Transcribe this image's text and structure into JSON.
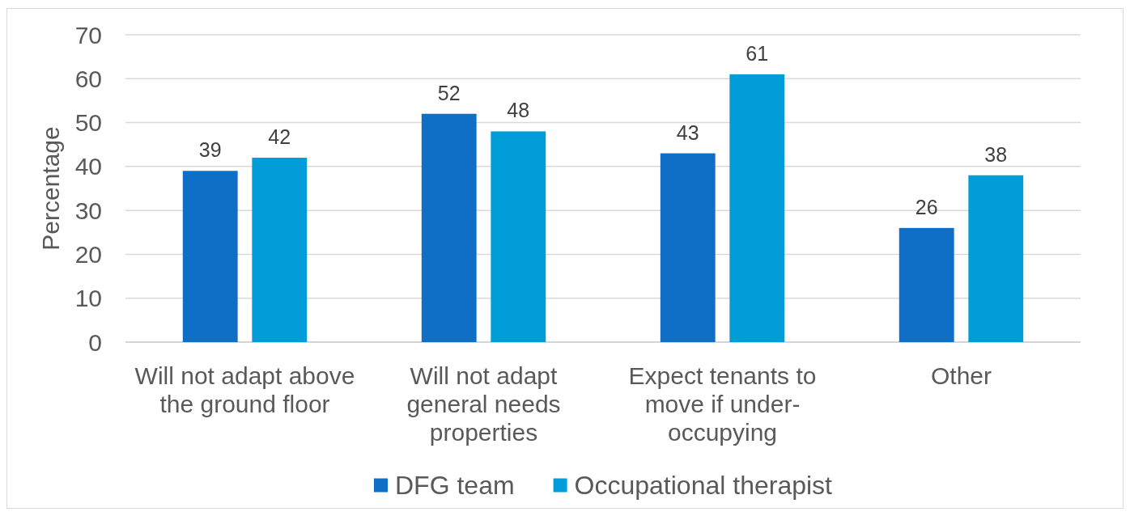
{
  "chart_data": {
    "type": "bar",
    "ylabel": "Percentage",
    "categories": [
      "Will not adapt above the ground floor",
      "Will not adapt general needs properties",
      "Expect tenants to move if under-occupying",
      "Other"
    ],
    "series": [
      {
        "name": "DFG team",
        "color": "#0f6fc6",
        "values": [
          39,
          52,
          43,
          26
        ]
      },
      {
        "name": "Occupational therapist",
        "color": "#009dd9",
        "values": [
          42,
          48,
          61,
          38
        ]
      }
    ],
    "ylim": [
      0,
      70
    ],
    "yticks": [
      0,
      10,
      20,
      30,
      40,
      50,
      60,
      70
    ],
    "grid": "y",
    "legend": "bottom",
    "data_labels": true
  }
}
